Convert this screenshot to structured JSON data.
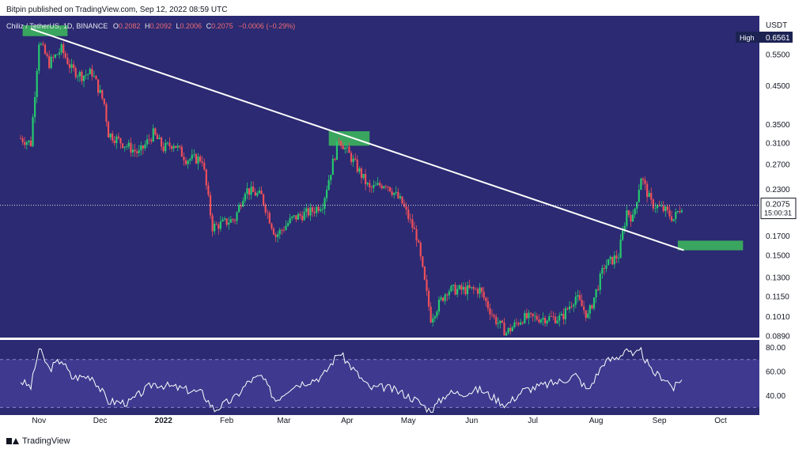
{
  "header": {
    "caption": "Bitpin published on TradingView.com, Sep 12, 2022 08:59 UTC"
  },
  "symbol": {
    "name": "Chiliz / TetherUS, 1D, BINANCE",
    "open_label": "O",
    "open": "0.2082",
    "high_label": "H",
    "high": "0.2092",
    "low_label": "L",
    "low": "0.2006",
    "close_label": "C",
    "close": "0.2075",
    "change": "−0.0006 (−0.29%)"
  },
  "price_axis": {
    "unit": "USDT",
    "high_label": "High",
    "high_value": "0.6561",
    "current_price": "0.2075",
    "countdown": "15:00:31"
  },
  "rsi_axis": {
    "ticks": [
      "80.00",
      "60.00",
      "40.00"
    ]
  },
  "footer": {
    "brand": "TradingView"
  },
  "colors": {
    "panel_bg": "#2b2a72",
    "rsi_band": "#3f3a8f",
    "up": "#26c96f",
    "down": "#ef4f5a",
    "trendline": "#ffffff",
    "zone": "#3aa55f"
  },
  "chart_data": [
    {
      "type": "candlestick",
      "title": "",
      "xlabel": "",
      "ylabel": "",
      "y_scale": "log",
      "y_ticks": [
        "0.6561",
        "0.5500",
        "0.4500",
        "0.3500",
        "0.3100",
        "0.2700",
        "0.2300",
        "0.2075",
        "0.1700",
        "0.1500",
        "0.1300",
        "0.1150",
        "0.1010",
        "0.0890"
      ],
      "ylim": [
        0.089,
        0.7
      ],
      "x_ticks": [
        "Nov",
        "Dec",
        "2022",
        "Feb",
        "Mar",
        "Apr",
        "May",
        "Jun",
        "Jul",
        "Aug",
        "Sep",
        "Oct"
      ],
      "price_path": [
        [
          "2021-10-23",
          0.32
        ],
        [
          "2021-10-28",
          0.31
        ],
        [
          "2021-11-01",
          0.6
        ],
        [
          "2021-11-06",
          0.52
        ],
        [
          "2021-11-12",
          0.57
        ],
        [
          "2021-11-17",
          0.5
        ],
        [
          "2021-11-22",
          0.48
        ],
        [
          "2021-11-27",
          0.49
        ],
        [
          "2021-12-03",
          0.4
        ],
        [
          "2021-12-05",
          0.33
        ],
        [
          "2021-12-12",
          0.31
        ],
        [
          "2021-12-20",
          0.29
        ],
        [
          "2021-12-27",
          0.33
        ],
        [
          "2022-01-01",
          0.3
        ],
        [
          "2022-01-06",
          0.31
        ],
        [
          "2022-01-12",
          0.28
        ],
        [
          "2022-01-20",
          0.28
        ],
        [
          "2022-01-25",
          0.18
        ],
        [
          "2022-02-05",
          0.19
        ],
        [
          "2022-02-10",
          0.23
        ],
        [
          "2022-02-18",
          0.22
        ],
        [
          "2022-02-25",
          0.17
        ],
        [
          "2022-03-05",
          0.19
        ],
        [
          "2022-03-15",
          0.2
        ],
        [
          "2022-03-20",
          0.21
        ],
        [
          "2022-03-28",
          0.32
        ],
        [
          "2022-04-05",
          0.27
        ],
        [
          "2022-04-12",
          0.23
        ],
        [
          "2022-04-20",
          0.24
        ],
        [
          "2022-04-28",
          0.21
        ],
        [
          "2022-05-05",
          0.17
        ],
        [
          "2022-05-12",
          0.1
        ],
        [
          "2022-05-20",
          0.12
        ],
        [
          "2022-05-28",
          0.12
        ],
        [
          "2022-06-05",
          0.12
        ],
        [
          "2022-06-12",
          0.1
        ],
        [
          "2022-06-18",
          0.091
        ],
        [
          "2022-06-26",
          0.1
        ],
        [
          "2022-07-05",
          0.1
        ],
        [
          "2022-07-15",
          0.1
        ],
        [
          "2022-07-22",
          0.115
        ],
        [
          "2022-07-28",
          0.101
        ],
        [
          "2022-08-05",
          0.14
        ],
        [
          "2022-08-12",
          0.15
        ],
        [
          "2022-08-16",
          0.2
        ],
        [
          "2022-08-19",
          0.19
        ],
        [
          "2022-08-23",
          0.25
        ],
        [
          "2022-08-28",
          0.21
        ],
        [
          "2022-09-04",
          0.2
        ],
        [
          "2022-09-08",
          0.19
        ],
        [
          "2022-09-12",
          0.2075
        ]
      ],
      "trendline": {
        "from": [
          "2021-10-28",
          0.65
        ],
        "to": [
          "2022-09-13",
          0.155
        ]
      },
      "zones": [
        {
          "from": "2021-10-24",
          "to": "2021-11-15",
          "low": 0.62,
          "high": 0.665
        },
        {
          "from": "2022-03-23",
          "to": "2022-04-12",
          "low": 0.305,
          "high": 0.335
        },
        {
          "from": "2022-09-10",
          "to": "2022-10-12",
          "low": 0.155,
          "high": 0.165
        }
      ],
      "current_price": 0.2075
    },
    {
      "type": "line",
      "title": "",
      "xlabel": "",
      "ylabel": "",
      "ylim": [
        25,
        85
      ],
      "y_ticks": [
        80,
        60,
        40
      ],
      "band": [
        30,
        70
      ],
      "points": [
        [
          "2021-10-23",
          52
        ],
        [
          "2021-10-28",
          47
        ],
        [
          "2021-11-01",
          79
        ],
        [
          "2021-11-06",
          62
        ],
        [
          "2021-11-12",
          70
        ],
        [
          "2021-11-17",
          55
        ],
        [
          "2021-11-27",
          56
        ],
        [
          "2021-12-05",
          35
        ],
        [
          "2021-12-15",
          34
        ],
        [
          "2021-12-27",
          50
        ],
        [
          "2022-01-06",
          47
        ],
        [
          "2022-01-20",
          42
        ],
        [
          "2022-01-26",
          28
        ],
        [
          "2022-02-05",
          38
        ],
        [
          "2022-02-12",
          52
        ],
        [
          "2022-02-18",
          56
        ],
        [
          "2022-02-25",
          36
        ],
        [
          "2022-03-05",
          48
        ],
        [
          "2022-03-15",
          53
        ],
        [
          "2022-03-20",
          56
        ],
        [
          "2022-03-28",
          76
        ],
        [
          "2022-04-05",
          60
        ],
        [
          "2022-04-12",
          46
        ],
        [
          "2022-04-20",
          47
        ],
        [
          "2022-04-28",
          42
        ],
        [
          "2022-05-05",
          36
        ],
        [
          "2022-05-12",
          27
        ],
        [
          "2022-05-20",
          42
        ],
        [
          "2022-05-28",
          42
        ],
        [
          "2022-06-05",
          45
        ],
        [
          "2022-06-12",
          38
        ],
        [
          "2022-06-18",
          32
        ],
        [
          "2022-06-26",
          44
        ],
        [
          "2022-07-05",
          48
        ],
        [
          "2022-07-15",
          52
        ],
        [
          "2022-07-22",
          57
        ],
        [
          "2022-07-28",
          44
        ],
        [
          "2022-08-05",
          68
        ],
        [
          "2022-08-12",
          72
        ],
        [
          "2022-08-16",
          80
        ],
        [
          "2022-08-19",
          72
        ],
        [
          "2022-08-23",
          77
        ],
        [
          "2022-08-28",
          60
        ],
        [
          "2022-09-04",
          54
        ],
        [
          "2022-09-08",
          46
        ],
        [
          "2022-09-12",
          53
        ]
      ]
    }
  ]
}
